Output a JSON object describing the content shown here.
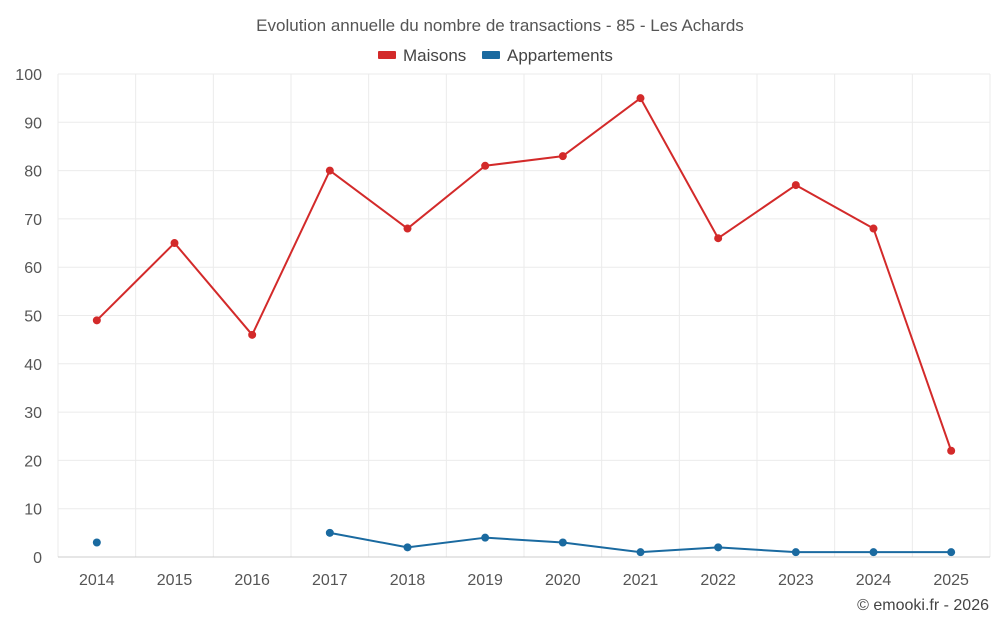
{
  "chart_data": {
    "type": "line",
    "title": "Evolution annuelle du nombre de transactions - 85 - Les Achards",
    "categories": [
      "2014",
      "2015",
      "2016",
      "2017",
      "2018",
      "2019",
      "2020",
      "2021",
      "2022",
      "2023",
      "2024",
      "2025"
    ],
    "series": [
      {
        "name": "Maisons",
        "color": "#d32a2a",
        "values": [
          49,
          65,
          46,
          80,
          68,
          81,
          83,
          95,
          66,
          77,
          68,
          22
        ]
      },
      {
        "name": "Appartements",
        "color": "#1a6aa0",
        "values": [
          3,
          null,
          null,
          5,
          2,
          4,
          3,
          1,
          2,
          1,
          1,
          1
        ]
      }
    ],
    "ylim": [
      0,
      100
    ],
    "yticks": [
      0,
      10,
      20,
      30,
      40,
      50,
      60,
      70,
      80,
      90,
      100
    ],
    "grid": true,
    "legend_position": "top-center"
  },
  "credit": "© emooki.fr - 2026"
}
